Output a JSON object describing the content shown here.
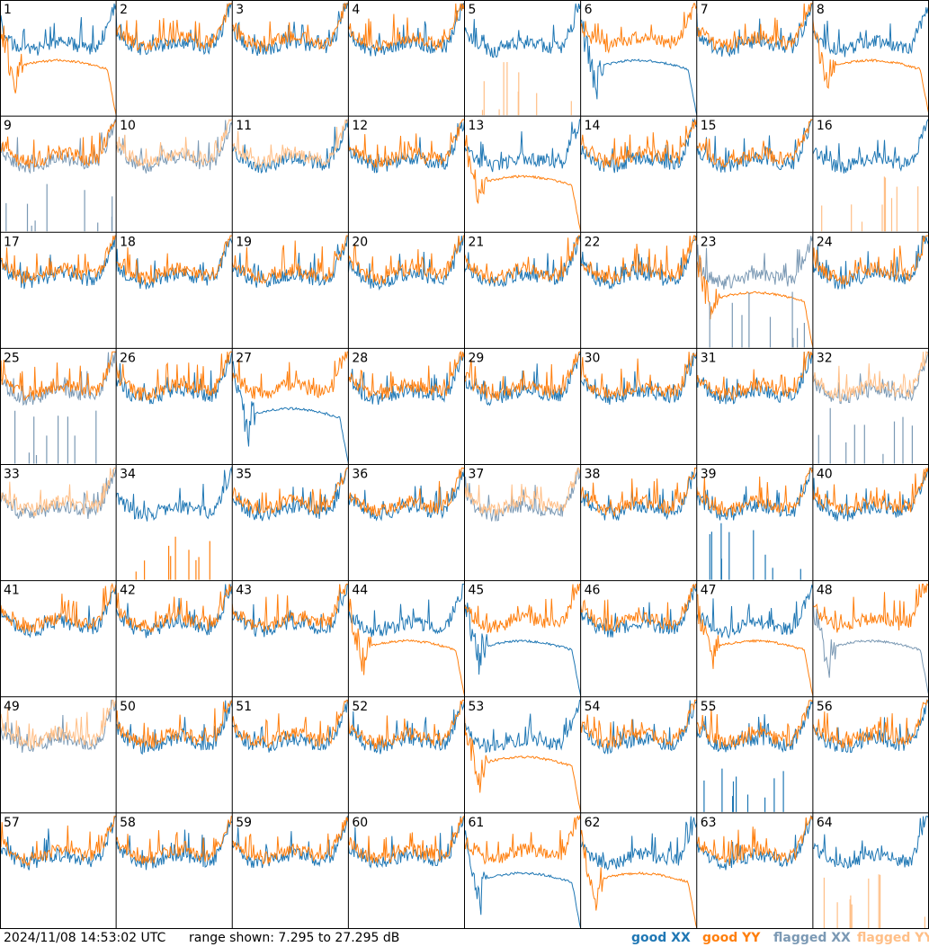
{
  "footer": {
    "timestamp": "2024/11/08 14:53:02 UTC",
    "range_text": "range shown: 7.295 to 27.295 dB"
  },
  "colors": {
    "good_xx": "#1f77b4",
    "good_yy": "#ff7f0e",
    "flagged_xx": "#7b99b4",
    "flagged_yy": "#ffbf87",
    "grid": "#000000",
    "background": "#ffffff"
  },
  "chart_data": {
    "type": "line",
    "grid": "8x8 panels",
    "ylim_db": [
      7.295,
      27.295
    ],
    "legend": [
      {
        "label": "good XX",
        "color": "#1f77b4"
      },
      {
        "label": "good YY",
        "color": "#ff7f0e"
      },
      {
        "label": "flagged XX",
        "color": "#7b99b4"
      },
      {
        "label": "flagged YY",
        "color": "#ffbf87"
      }
    ],
    "panels": [
      {
        "label": "1",
        "xx": "good",
        "yy": "good",
        "yy_shape": "collapsed"
      },
      {
        "label": "2",
        "xx": "good",
        "yy": "good",
        "yy_shape": "normal"
      },
      {
        "label": "3",
        "xx": "good",
        "yy": "good",
        "yy_shape": "normal"
      },
      {
        "label": "4",
        "xx": "good",
        "yy": "good",
        "yy_shape": "normal"
      },
      {
        "label": "5",
        "xx": "good",
        "yy": "flagged",
        "yy_shape": "spikes"
      },
      {
        "label": "6",
        "xx": "good",
        "yy": "good",
        "yy_shape": "normal",
        "xx_shape": "collapsed"
      },
      {
        "label": "7",
        "xx": "good",
        "yy": "good",
        "yy_shape": "normal"
      },
      {
        "label": "8",
        "xx": "good",
        "yy": "good",
        "yy_shape": "collapsed"
      },
      {
        "label": "9",
        "xx": "flagged",
        "yy": "good",
        "xx_shape": "spikes",
        "yy_shape": "normal"
      },
      {
        "label": "10",
        "xx": "flagged",
        "yy": "flagged",
        "yy_shape": "normal"
      },
      {
        "label": "11",
        "xx": "good",
        "yy": "flagged",
        "yy_shape": "normal"
      },
      {
        "label": "12",
        "xx": "good",
        "yy": "good",
        "yy_shape": "normal"
      },
      {
        "label": "13",
        "xx": "good",
        "yy": "good",
        "yy_shape": "collapsed"
      },
      {
        "label": "14",
        "xx": "good",
        "yy": "good",
        "yy_shape": "normal"
      },
      {
        "label": "15",
        "xx": "good",
        "yy": "good",
        "yy_shape": "normal"
      },
      {
        "label": "16",
        "xx": "good",
        "yy": "flagged",
        "yy_shape": "spikes"
      },
      {
        "label": "17",
        "xx": "good",
        "yy": "good",
        "yy_shape": "normal"
      },
      {
        "label": "18",
        "xx": "good",
        "yy": "good",
        "yy_shape": "normal"
      },
      {
        "label": "19",
        "xx": "good",
        "yy": "good",
        "yy_shape": "normal"
      },
      {
        "label": "20",
        "xx": "good",
        "yy": "good",
        "yy_shape": "normal"
      },
      {
        "label": "21",
        "xx": "good",
        "yy": "good",
        "yy_shape": "normal"
      },
      {
        "label": "22",
        "xx": "good",
        "yy": "good",
        "yy_shape": "normal"
      },
      {
        "label": "23",
        "xx": "flagged",
        "yy": "good",
        "xx_shape": "spikes",
        "yy_shape": "collapsed"
      },
      {
        "label": "24",
        "xx": "good",
        "yy": "good",
        "yy_shape": "normal"
      },
      {
        "label": "25",
        "xx": "flagged",
        "yy": "good",
        "xx_shape": "spikes",
        "yy_shape": "normal"
      },
      {
        "label": "26",
        "xx": "good",
        "yy": "good",
        "yy_shape": "normal"
      },
      {
        "label": "27",
        "xx": "good",
        "yy": "good",
        "xx_shape": "collapsed",
        "yy_shape": "normal"
      },
      {
        "label": "28",
        "xx": "good",
        "yy": "good",
        "yy_shape": "normal"
      },
      {
        "label": "29",
        "xx": "good",
        "yy": "good",
        "yy_shape": "normal"
      },
      {
        "label": "30",
        "xx": "good",
        "yy": "good",
        "yy_shape": "normal"
      },
      {
        "label": "31",
        "xx": "good",
        "yy": "good",
        "yy_shape": "normal"
      },
      {
        "label": "32",
        "xx": "flagged",
        "yy": "flagged",
        "xx_shape": "spikes",
        "yy_shape": "normal"
      },
      {
        "label": "33",
        "xx": "flagged",
        "yy": "flagged",
        "yy_shape": "normal"
      },
      {
        "label": "34",
        "xx": "good",
        "yy": "good",
        "yy_shape": "spikes"
      },
      {
        "label": "35",
        "xx": "good",
        "yy": "good",
        "yy_shape": "normal"
      },
      {
        "label": "36",
        "xx": "good",
        "yy": "good",
        "yy_shape": "normal"
      },
      {
        "label": "37",
        "xx": "flagged",
        "yy": "flagged",
        "yy_shape": "normal"
      },
      {
        "label": "38",
        "xx": "good",
        "yy": "good",
        "yy_shape": "normal"
      },
      {
        "label": "39",
        "xx": "good",
        "yy": "good",
        "xx_shape": "spikes",
        "yy_shape": "normal"
      },
      {
        "label": "40",
        "xx": "good",
        "yy": "good",
        "yy_shape": "normal"
      },
      {
        "label": "41",
        "xx": "good",
        "yy": "good",
        "yy_shape": "normal"
      },
      {
        "label": "42",
        "xx": "good",
        "yy": "good",
        "yy_shape": "normal"
      },
      {
        "label": "43",
        "xx": "good",
        "yy": "good",
        "yy_shape": "normal"
      },
      {
        "label": "44",
        "xx": "good",
        "yy": "good",
        "yy_shape": "collapsed"
      },
      {
        "label": "45",
        "xx": "good",
        "yy": "good",
        "yy_shape": "normal",
        "xx_shape": "collapsed"
      },
      {
        "label": "46",
        "xx": "good",
        "yy": "good",
        "yy_shape": "normal"
      },
      {
        "label": "47",
        "xx": "good",
        "yy": "good",
        "yy_shape": "collapsed"
      },
      {
        "label": "48",
        "xx": "flagged",
        "yy": "good",
        "xx_shape": "collapsed",
        "yy_shape": "normal"
      },
      {
        "label": "49",
        "xx": "flagged",
        "yy": "flagged",
        "yy_shape": "normal"
      },
      {
        "label": "50",
        "xx": "good",
        "yy": "good",
        "yy_shape": "normal"
      },
      {
        "label": "51",
        "xx": "good",
        "yy": "good",
        "yy_shape": "normal"
      },
      {
        "label": "52",
        "xx": "good",
        "yy": "good",
        "yy_shape": "normal"
      },
      {
        "label": "53",
        "xx": "good",
        "yy": "good",
        "yy_shape": "collapsed"
      },
      {
        "label": "54",
        "xx": "good",
        "yy": "good",
        "yy_shape": "normal"
      },
      {
        "label": "55",
        "xx": "good",
        "yy": "good",
        "xx_shape": "spikes",
        "yy_shape": "normal"
      },
      {
        "label": "56",
        "xx": "good",
        "yy": "good",
        "yy_shape": "normal"
      },
      {
        "label": "57",
        "xx": "good",
        "yy": "good",
        "yy_shape": "normal"
      },
      {
        "label": "58",
        "xx": "good",
        "yy": "good",
        "yy_shape": "normal"
      },
      {
        "label": "59",
        "xx": "good",
        "yy": "good",
        "yy_shape": "normal"
      },
      {
        "label": "60",
        "xx": "good",
        "yy": "good",
        "yy_shape": "normal"
      },
      {
        "label": "61",
        "xx": "good",
        "yy": "good",
        "xx_shape": "collapsed",
        "yy_shape": "normal"
      },
      {
        "label": "62",
        "xx": "good",
        "yy": "good",
        "yy_shape": "collapsed"
      },
      {
        "label": "63",
        "xx": "good",
        "yy": "good",
        "yy_shape": "normal"
      },
      {
        "label": "64",
        "xx": "good",
        "yy": "flagged",
        "yy_shape": "spikes"
      }
    ]
  }
}
